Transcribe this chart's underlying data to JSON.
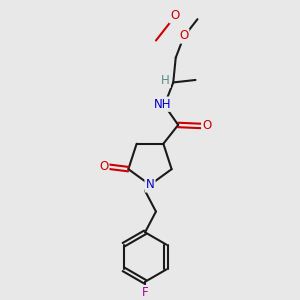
{
  "background_color": "#e8e8e8",
  "bond_color": "#1a1a1a",
  "atom_colors": {
    "O": "#cc0000",
    "N": "#0000cc",
    "F": "#aa00aa",
    "H": "#5a8a8a"
  },
  "figsize": [
    3.0,
    3.0
  ],
  "dpi": 100,
  "xlim": [
    -1.4,
    1.6
  ],
  "ylim": [
    -3.5,
    2.5
  ]
}
